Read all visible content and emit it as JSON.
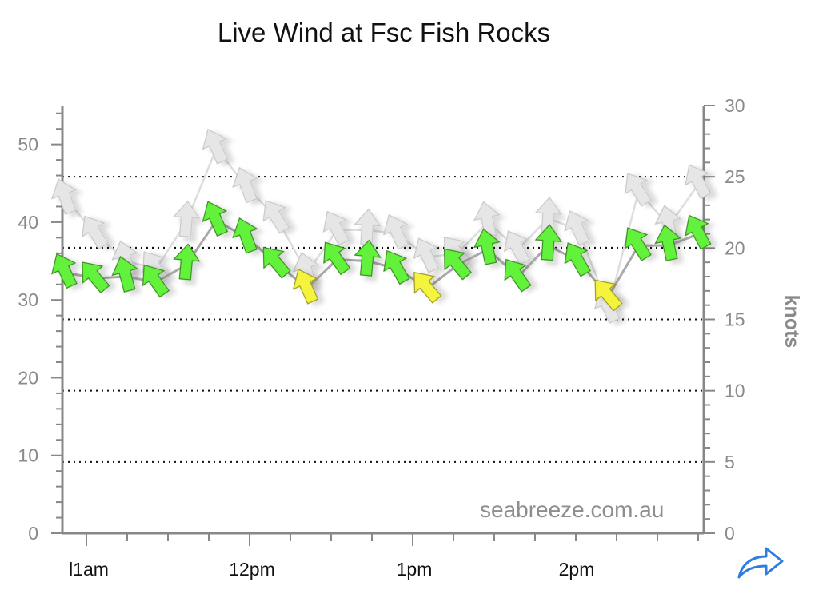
{
  "title": "Live Wind at Fsc Fish Rocks",
  "watermark": "seabreeze.com.au",
  "share_icon": "share-arrow-icon",
  "colors": {
    "green_arrow": "#63f23a",
    "yellow_arrow": "#f4f33c",
    "gust_arrow": "#e6e6e6",
    "line": "#a9a9a9",
    "gust_line": "#dddddd",
    "axis": "#888888",
    "share": "#2e7ee0"
  },
  "chart_data": {
    "type": "line",
    "x_time_labels": [
      "l1am",
      "12pm",
      "1pm",
      "2pm"
    ],
    "left_axis": {
      "label": "",
      "ticks": [
        0,
        10,
        20,
        30,
        40,
        50
      ],
      "range": [
        0,
        55
      ]
    },
    "right_axis": {
      "label": "knots",
      "ticks": [
        0,
        5,
        10,
        15,
        20,
        25,
        30
      ],
      "range": [
        0,
        30
      ]
    },
    "grid": "dotted horizontal lines every 5 knots",
    "series": [
      {
        "values": [
          33.5,
          32.8,
          33.0,
          32.3,
          34.5,
          40.2,
          38.0,
          34.7,
          31.5,
          35.2,
          35.0,
          34.0,
          31.5,
          34.5,
          36.5,
          33.0,
          37.0,
          35.0,
          30.5,
          37.0,
          37.0,
          38.5
        ],
        "arrows": [
          "green",
          "green",
          "green",
          "green",
          "green",
          "green",
          "green",
          "green",
          "yellow",
          "green",
          "green",
          "green",
          "yellow",
          "green",
          "green",
          "green",
          "green",
          "green",
          "yellow",
          "green",
          "green",
          "green"
        ]
      },
      {
        "values": [
          43.0,
          38.5,
          35.0,
          34.0,
          40.0,
          49.5,
          44.5,
          40.5,
          33.5,
          39.0,
          39.0,
          38.5,
          35.5,
          36.0,
          40.0,
          36.5,
          40.5,
          39.0,
          29.0,
          44.0,
          39.5,
          45.0
        ],
        "arrows": [
          "gust",
          "gust",
          "gust",
          "gust",
          "gust",
          "gust",
          "gust",
          "gust",
          "gust",
          "gust",
          "gust",
          "gust",
          "gust",
          "gust",
          "gust",
          "gust",
          "gust",
          "gust",
          "gust",
          "gust",
          "gust",
          "gust"
        ]
      }
    ]
  }
}
